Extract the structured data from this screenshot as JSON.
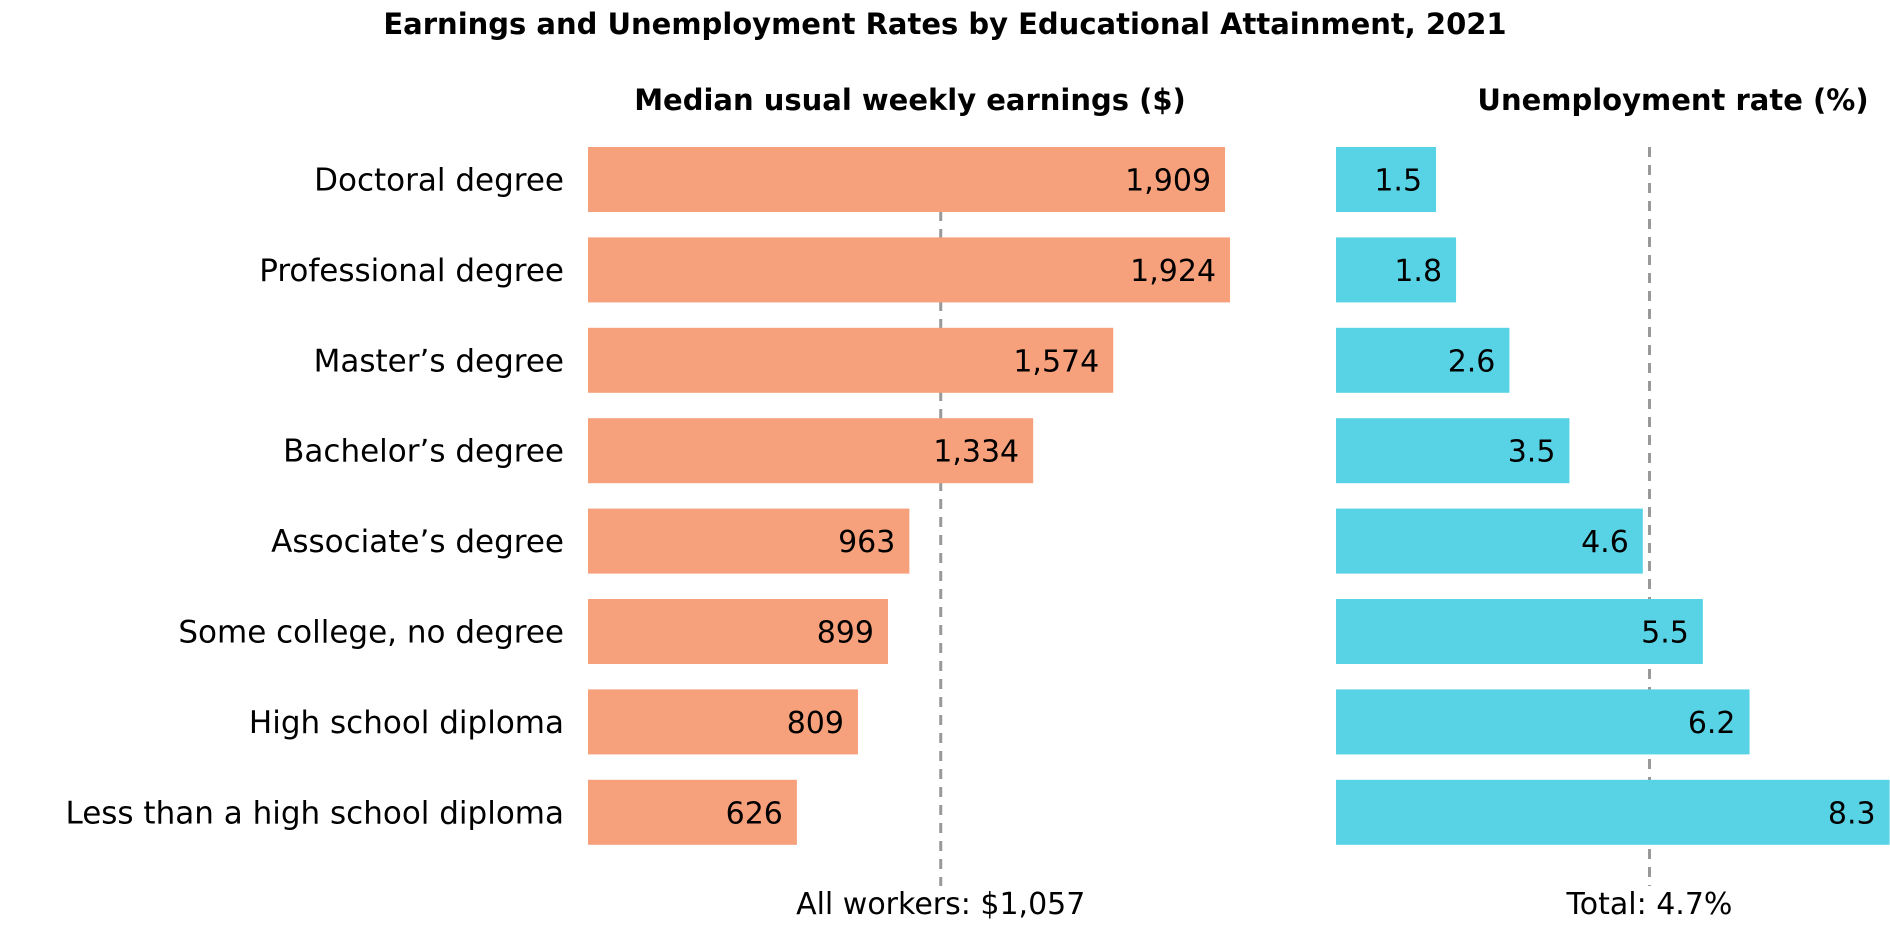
{
  "chart_data": [
    {
      "type": "bar",
      "orientation": "horizontal",
      "title": "Earnings and Unemployment Rates by Educational Attainment, 2021",
      "subtitle": "Median usual weekly earnings ($)",
      "categories": [
        "Doctoral degree",
        "Professional degree",
        "Master’s degree",
        "Bachelor’s degree",
        "Associate’s degree",
        "Some college, no degree",
        "High school diploma",
        "Less than a high school diploma"
      ],
      "values": [
        1909,
        1924,
        1574,
        1334,
        963,
        899,
        809,
        626
      ],
      "value_labels": [
        "1,909",
        "1,924",
        "1,574",
        "1,334",
        "963",
        "899",
        "809",
        "626"
      ],
      "reference_line": {
        "value": 1057,
        "label": "All workers: $1,057",
        "style": "dashed"
      },
      "color": "#F7A07C",
      "grid": false
    },
    {
      "type": "bar",
      "orientation": "horizontal",
      "subtitle": "Unemployment rate (%)",
      "categories": [
        "Doctoral degree",
        "Professional degree",
        "Master’s degree",
        "Bachelor’s degree",
        "Associate’s degree",
        "Some college, no degree",
        "High school diploma",
        "Less than a high school diploma"
      ],
      "values": [
        1.5,
        1.8,
        2.6,
        3.5,
        4.6,
        5.5,
        6.2,
        8.3
      ],
      "value_labels": [
        "1.5",
        "1.8",
        "2.6",
        "3.5",
        "4.6",
        "5.5",
        "6.2",
        "8.3"
      ],
      "reference_line": {
        "value": 4.7,
        "label": "Total: 4.7%",
        "style": "dashed"
      },
      "color": "#58D3E6",
      "grid": false
    }
  ]
}
